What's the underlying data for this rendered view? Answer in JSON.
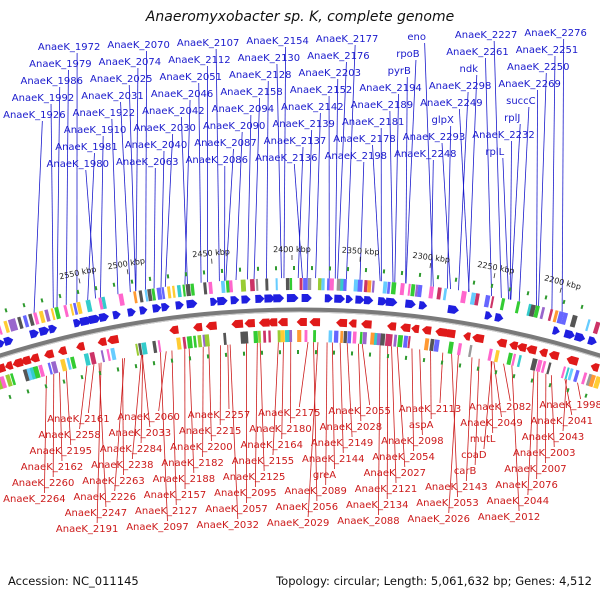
{
  "title": "Anaeromyxobacter sp. K, complete genome",
  "accession": "Accession: NC_011145",
  "topology": "Topology: circular; Length: 5,061,632 bp; Genes: 4,512",
  "colors": {
    "forward_label": "#1a1acc",
    "reverse_label": "#cc1a1a",
    "forward_arrow": "#1f1fe0",
    "reverse_arrow": "#e01a1a",
    "backbone": "#7a7a7a",
    "tick": "#2e9a2e"
  },
  "scale_marks": [
    "2550 kbp",
    "2500 kbp",
    "2450 kbp",
    "2400 kbp",
    "2350 kbp",
    "2300 kbp",
    "2250 kbp",
    "2200 kbp"
  ],
  "forward_labels": [
    "AnaeK_2276",
    "AnaeK_2251",
    "AnaeK_2250",
    "AnaeK_2269",
    "succC",
    "rplJ",
    "AnaeK_2232",
    "rplL",
    "AnaeK_2227",
    "AnaeK_2261",
    "ndk",
    "AnaeK_2298",
    "AnaeK_2249",
    "glpX",
    "AnaeK_2293",
    "AnaeK_2248",
    "eno",
    "rpoB",
    "pyrB",
    "AnaeK_2194",
    "AnaeK_2189",
    "AnaeK_2181",
    "AnaeK_2178",
    "AnaeK_2198",
    "AnaeK_2177",
    "AnaeK_2176",
    "AnaeK_2203",
    "AnaeK_2152",
    "AnaeK_2142",
    "AnaeK_2139",
    "AnaeK_2137",
    "AnaeK_2136",
    "AnaeK_2154",
    "AnaeK_2130",
    "AnaeK_2128",
    "AnaeK_2158",
    "AnaeK_2094",
    "AnaeK_2090",
    "AnaeK_2087",
    "AnaeK_2086",
    "AnaeK_2107",
    "AnaeK_2112",
    "AnaeK_2051",
    "AnaeK_2046",
    "AnaeK_2042",
    "AnaeK_2030",
    "AnaeK_2040",
    "AnaeK_2063",
    "AnaeK_2070",
    "AnaeK_2074",
    "AnaeK_2025",
    "AnaeK_2031",
    "AnaeK_1922",
    "AnaeK_1910",
    "AnaeK_1981",
    "AnaeK_1980",
    "AnaeK_1972",
    "AnaeK_1979",
    "AnaeK_1986",
    "AnaeK_1992",
    "AnaeK_1926"
  ],
  "reverse_labels": [
    "AnaeK_1998",
    "AnaeK_2041",
    "AnaeK_2043",
    "AnaeK_2003",
    "AnaeK_2007",
    "AnaeK_2076",
    "AnaeK_2044",
    "AnaeK_2012",
    "AnaeK_2082",
    "AnaeK_2049",
    "mutL",
    "coaD",
    "carB",
    "AnaeK_2143",
    "AnaeK_2053",
    "AnaeK_2026",
    "AnaeK_2113",
    "aspA",
    "AnaeK_2098",
    "AnaeK_2054",
    "AnaeK_2027",
    "AnaeK_2121",
    "AnaeK_2134",
    "AnaeK_2088",
    "AnaeK_2055",
    "AnaeK_2028",
    "AnaeK_2149",
    "AnaeK_2144",
    "greA",
    "AnaeK_2089",
    "AnaeK_2056",
    "AnaeK_2029",
    "AnaeK_2175",
    "AnaeK_2180",
    "AnaeK_2164",
    "AnaeK_2155",
    "AnaeK_2125",
    "AnaeK_2095",
    "AnaeK_2057",
    "AnaeK_2032",
    "AnaeK_2257",
    "AnaeK_2215",
    "AnaeK_2200",
    "AnaeK_2182",
    "AnaeK_2188",
    "AnaeK_2157",
    "AnaeK_2127",
    "AnaeK_2097",
    "AnaeK_2060",
    "AnaeK_2033",
    "AnaeK_2284",
    "AnaeK_2238",
    "AnaeK_2263",
    "AnaeK_2226",
    "AnaeK_2247",
    "AnaeK_2191",
    "AnaeK_2161",
    "AnaeK_2258",
    "AnaeK_2195",
    "AnaeK_2162",
    "AnaeK_2260",
    "AnaeK_2264"
  ]
}
